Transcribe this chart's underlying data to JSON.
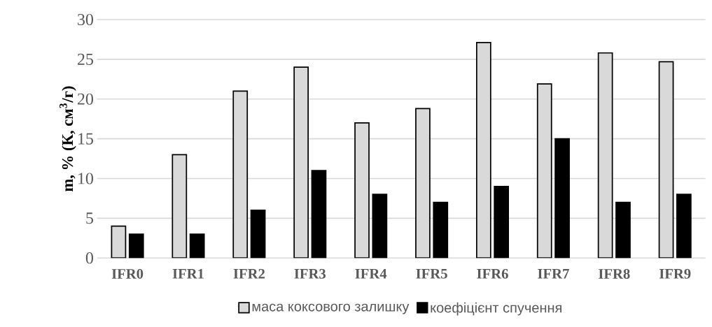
{
  "chart_data": {
    "type": "bar",
    "ylabel": "m, % (К, см$^{3}$/г)",
    "categories": [
      "IFR0",
      "IFR1",
      "IFR2",
      "IFR3",
      "IFR4",
      "IFR5",
      "IFR6",
      "IFR7",
      "IFR8",
      "IFR9"
    ],
    "series": [
      {
        "name": "маса коксового залишку",
        "color": "#d9d9d9",
        "values": [
          4,
          13,
          21,
          24,
          17,
          18.8,
          27.1,
          21.9,
          25.8,
          24.7
        ]
      },
      {
        "name": "коефіцієнт спучення",
        "color": "#000000",
        "values": [
          3,
          3,
          6,
          11,
          8,
          7,
          9,
          15,
          7,
          8
        ]
      }
    ],
    "ylim": [
      0,
      30
    ],
    "yticks": [
      0,
      5,
      10,
      15,
      20,
      25,
      30
    ],
    "grid": "y",
    "legend": "bottom"
  }
}
